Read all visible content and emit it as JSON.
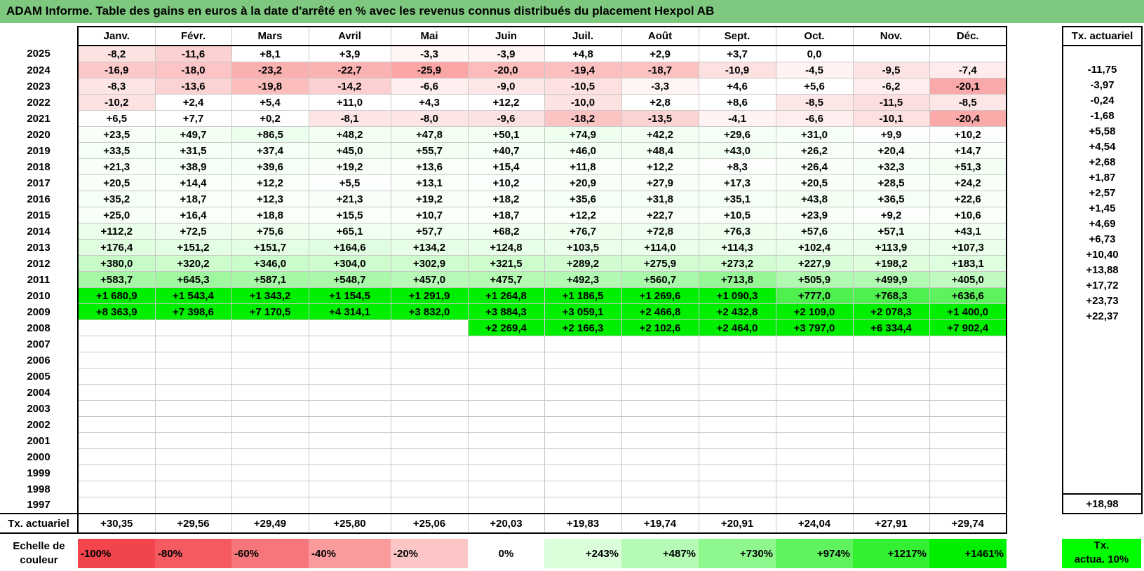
{
  "title": "ADAM Informe. Table des gains en euros à la date d'arrêté en % avec les revenus connus distribués du placement Hexpol AB",
  "months": [
    "Janv.",
    "Févr.",
    "Mars",
    "Avril",
    "Mai",
    "Juin",
    "Juil.",
    "Août",
    "Sept.",
    "Oct.",
    "Nov.",
    "Déc."
  ],
  "side_header": "Tx. actuariel",
  "rows": [
    {
      "year": "2025",
      "tx": "",
      "cells": [
        [
          "-8,2",
          "#fde2e2"
        ],
        [
          "-11,6",
          "#fcd1d1"
        ],
        [
          "+8,1",
          "#ffffff"
        ],
        [
          "+3,9",
          "#ffffff"
        ],
        [
          "-3,3",
          "#fff5f5"
        ],
        [
          "-3,9",
          "#fff3f3"
        ],
        [
          "+4,8",
          "#ffffff"
        ],
        [
          "+2,9",
          "#ffffff"
        ],
        [
          "+3,7",
          "#ffffff"
        ],
        [
          "0,0",
          "#ffffff"
        ],
        [
          "",
          ""
        ],
        [
          "",
          ""
        ]
      ]
    },
    {
      "year": "2024",
      "tx": "-11,75",
      "cells": [
        [
          "-16,9",
          "#fcc9c9"
        ],
        [
          "-18,0",
          "#fcc4c4"
        ],
        [
          "-23,2",
          "#fbb0b0"
        ],
        [
          "-22,7",
          "#fbb2b2"
        ],
        [
          "-25,9",
          "#fba5a5"
        ],
        [
          "-20,0",
          "#fcbcbc"
        ],
        [
          "-19,4",
          "#fcbfbf"
        ],
        [
          "-18,7",
          "#fcc1c1"
        ],
        [
          "-10,9",
          "#fde0e0"
        ],
        [
          "-4,5",
          "#fff2f2"
        ],
        [
          "-9,5",
          "#fde4e4"
        ],
        [
          "-7,4",
          "#feecec"
        ]
      ]
    },
    {
      "year": "2023",
      "tx": "-3,97",
      "cells": [
        [
          "-8,3",
          "#fde5e5"
        ],
        [
          "-13,6",
          "#fcd3d3"
        ],
        [
          "-19,8",
          "#fcbdbd"
        ],
        [
          "-14,2",
          "#fcd0d0"
        ],
        [
          "-6,6",
          "#feeeee"
        ],
        [
          "-9,0",
          "#fde6e6"
        ],
        [
          "-10,5",
          "#fde1e1"
        ],
        [
          "-3,3",
          "#fff5f5"
        ],
        [
          "+4,6",
          "#ffffff"
        ],
        [
          "+5,6",
          "#ffffff"
        ],
        [
          "-6,2",
          "#feeeee"
        ],
        [
          "-20,1",
          "#f9a9a9"
        ]
      ]
    },
    {
      "year": "2022",
      "tx": "-0,24",
      "cells": [
        [
          "-10,2",
          "#fde2e2"
        ],
        [
          "+2,4",
          "#ffffff"
        ],
        [
          "+5,4",
          "#ffffff"
        ],
        [
          "+11,0",
          "#ffffff"
        ],
        [
          "+4,3",
          "#ffffff"
        ],
        [
          "+12,2",
          "#ffffff"
        ],
        [
          "-10,0",
          "#fde2e2"
        ],
        [
          "+2,8",
          "#ffffff"
        ],
        [
          "+8,6",
          "#ffffff"
        ],
        [
          "-8,5",
          "#fde6e6"
        ],
        [
          "-11,5",
          "#fddede"
        ],
        [
          "-8,5",
          "#fde6e6"
        ]
      ]
    },
    {
      "year": "2021",
      "tx": "-1,68",
      "cells": [
        [
          "+6,5",
          "#ffffff"
        ],
        [
          "+7,7",
          "#ffffff"
        ],
        [
          "+0,2",
          "#ffffff"
        ],
        [
          "-8,1",
          "#fde5e5"
        ],
        [
          "-8,0",
          "#fde5e5"
        ],
        [
          "-9,6",
          "#fde2e2"
        ],
        [
          "-18,2",
          "#fcc3c3"
        ],
        [
          "-13,5",
          "#fcd3d3"
        ],
        [
          "-4,1",
          "#fff2f2"
        ],
        [
          "-6,6",
          "#feeeee"
        ],
        [
          "-10,1",
          "#fde1e1"
        ],
        [
          "-20,4",
          "#fba9a9"
        ]
      ]
    },
    {
      "year": "2020",
      "tx": "+5,58",
      "cells": [
        [
          "+23,5",
          "#f8fff8"
        ],
        [
          "+49,7",
          "#f2fff2"
        ],
        [
          "+86,5",
          "#ecffec"
        ],
        [
          "+48,2",
          "#f2fff2"
        ],
        [
          "+47,8",
          "#f2fff2"
        ],
        [
          "+50,1",
          "#f2fff2"
        ],
        [
          "+74,9",
          "#eeffee"
        ],
        [
          "+42,2",
          "#f4fff4"
        ],
        [
          "+29,6",
          "#f6fff6"
        ],
        [
          "+31,0",
          "#f6fff6"
        ],
        [
          "+9,9",
          "#fcfffc"
        ],
        [
          "+10,2",
          "#fcfffc"
        ]
      ]
    },
    {
      "year": "2019",
      "tx": "+4,54",
      "cells": [
        [
          "+33,5",
          "#f6fff6"
        ],
        [
          "+31,5",
          "#f6fff6"
        ],
        [
          "+37,4",
          "#f5fff5"
        ],
        [
          "+45,0",
          "#f4fff4"
        ],
        [
          "+55,7",
          "#f2fff2"
        ],
        [
          "+40,7",
          "#f5fff5"
        ],
        [
          "+46,0",
          "#f4fff4"
        ],
        [
          "+48,4",
          "#f4fff4"
        ],
        [
          "+43,0",
          "#f4fff4"
        ],
        [
          "+26,2",
          "#f7fff7"
        ],
        [
          "+20,4",
          "#f8fff8"
        ],
        [
          "+14,7",
          "#f9fff9"
        ]
      ]
    },
    {
      "year": "2018",
      "tx": "+2,68",
      "cells": [
        [
          "+21,3",
          "#f8fff8"
        ],
        [
          "+38,9",
          "#f5fff5"
        ],
        [
          "+39,6",
          "#f5fff5"
        ],
        [
          "+19,2",
          "#f8fff8"
        ],
        [
          "+13,6",
          "#fafffa"
        ],
        [
          "+15,4",
          "#f9fff9"
        ],
        [
          "+11,8",
          "#fafffa"
        ],
        [
          "+12,2",
          "#fafffa"
        ],
        [
          "+8,3",
          "#fcfffc"
        ],
        [
          "+26,4",
          "#f7fff7"
        ],
        [
          "+32,3",
          "#f6fff6"
        ],
        [
          "+51,3",
          "#f2fff2"
        ]
      ]
    },
    {
      "year": "2017",
      "tx": "+1,87",
      "cells": [
        [
          "+20,5",
          "#f8fff8"
        ],
        [
          "+14,4",
          "#fafffa"
        ],
        [
          "+12,2",
          "#fafffa"
        ],
        [
          "+5,5",
          "#fdfffd"
        ],
        [
          "+13,1",
          "#fafffa"
        ],
        [
          "+10,2",
          "#fbfffb"
        ],
        [
          "+20,9",
          "#f8fff8"
        ],
        [
          "+27,9",
          "#f7fff7"
        ],
        [
          "+17,3",
          "#f9fff9"
        ],
        [
          "+20,5",
          "#f8fff8"
        ],
        [
          "+28,5",
          "#f7fff7"
        ],
        [
          "+24,2",
          "#f8fff8"
        ]
      ]
    },
    {
      "year": "2016",
      "tx": "+2,57",
      "cells": [
        [
          "+35,2",
          "#f6fff6"
        ],
        [
          "+18,7",
          "#f9fff9"
        ],
        [
          "+12,3",
          "#fafffa"
        ],
        [
          "+21,3",
          "#f8fff8"
        ],
        [
          "+19,2",
          "#f8fff8"
        ],
        [
          "+18,2",
          "#f9fff9"
        ],
        [
          "+35,6",
          "#f5fff5"
        ],
        [
          "+31,8",
          "#f6fff6"
        ],
        [
          "+35,1",
          "#f6fff6"
        ],
        [
          "+43,8",
          "#f4fff4"
        ],
        [
          "+36,5",
          "#f5fff5"
        ],
        [
          "+22,6",
          "#f8fff8"
        ]
      ]
    },
    {
      "year": "2015",
      "tx": "+1,45",
      "cells": [
        [
          "+25,0",
          "#f8fff8"
        ],
        [
          "+16,4",
          "#f9fff9"
        ],
        [
          "+18,8",
          "#f9fff9"
        ],
        [
          "+15,5",
          "#f9fff9"
        ],
        [
          "+10,7",
          "#fafffa"
        ],
        [
          "+18,7",
          "#f9fff9"
        ],
        [
          "+12,2",
          "#fafffa"
        ],
        [
          "+22,7",
          "#f8fff8"
        ],
        [
          "+10,5",
          "#fafffa"
        ],
        [
          "+23,9",
          "#f8fff8"
        ],
        [
          "+9,2",
          "#fcfffc"
        ],
        [
          "+10,6",
          "#fafffa"
        ]
      ]
    },
    {
      "year": "2014",
      "tx": "+4,69",
      "cells": [
        [
          "+112,2",
          "#eaffea"
        ],
        [
          "+72,5",
          "#effeef"
        ],
        [
          "+75,6",
          "#eeffee"
        ],
        [
          "+65,1",
          "#f0fff0"
        ],
        [
          "+57,7",
          "#f1fff1"
        ],
        [
          "+68,2",
          "#f0fff0"
        ],
        [
          "+76,7",
          "#eeffee"
        ],
        [
          "+72,8",
          "#efffef"
        ],
        [
          "+76,3",
          "#eeffee"
        ],
        [
          "+57,6",
          "#f1fff1"
        ],
        [
          "+57,1",
          "#f1fff1"
        ],
        [
          "+43,1",
          "#f4fff4"
        ]
      ]
    },
    {
      "year": "2013",
      "tx": "+6,73",
      "cells": [
        [
          "+176,4",
          "#e0fde0"
        ],
        [
          "+151,2",
          "#e3fee3"
        ],
        [
          "+151,7",
          "#e3fee3"
        ],
        [
          "+164,6",
          "#e1fde1"
        ],
        [
          "+134,2",
          "#e6fee6"
        ],
        [
          "+124,8",
          "#e7fee7"
        ],
        [
          "+103,5",
          "#eaffea"
        ],
        [
          "+114,0",
          "#e9ffe9"
        ],
        [
          "+114,3",
          "#e9ffe9"
        ],
        [
          "+102,4",
          "#eaffea"
        ],
        [
          "+113,9",
          "#e9ffe9"
        ],
        [
          "+107,3",
          "#eaffea"
        ]
      ]
    },
    {
      "year": "2012",
      "tx": "+10,40",
      "cells": [
        [
          "+380,0",
          "#c6fbc6"
        ],
        [
          "+320,2",
          "#cdfccd"
        ],
        [
          "+346,0",
          "#cafbca"
        ],
        [
          "+304,0",
          "#cffccf"
        ],
        [
          "+302,9",
          "#cffccf"
        ],
        [
          "+321,5",
          "#cdfccd"
        ],
        [
          "+289,2",
          "#d1fcd1"
        ],
        [
          "+275,9",
          "#d3fcd3"
        ],
        [
          "+273,2",
          "#d3fcd3"
        ],
        [
          "+227,9",
          "#d9fdd9"
        ],
        [
          "+198,2",
          "#ddfddd"
        ],
        [
          "+183,1",
          "#dffddf"
        ]
      ]
    },
    {
      "year": "2011",
      "tx": "+13,88",
      "cells": [
        [
          "+583,7",
          "#a6f7a6"
        ],
        [
          "+645,3",
          "#9ff79f"
        ],
        [
          "+587,1",
          "#a6f7a6"
        ],
        [
          "+548,7",
          "#abf8ab"
        ],
        [
          "+457,0",
          "#b8f9b8"
        ],
        [
          "+475,7",
          "#b5f9b5"
        ],
        [
          "+492,3",
          "#b3f9b3"
        ],
        [
          "+560,7",
          "#aaf8aa"
        ],
        [
          "+713,8",
          "#96f696"
        ],
        [
          "+505,9",
          "#b1f9b1"
        ],
        [
          "+499,9",
          "#b2f9b2"
        ],
        [
          "+405,0",
          "#c1fac1"
        ]
      ]
    },
    {
      "year": "2010",
      "tx": "+17,72",
      "cells": [
        [
          "+1 680,9",
          "#00ee00"
        ],
        [
          "+1 543,4",
          "#00ee00"
        ],
        [
          "+1 343,2",
          "#00ee00"
        ],
        [
          "+1 154,5",
          "#00ee00"
        ],
        [
          "+1 291,9",
          "#00ee00"
        ],
        [
          "+1 264,8",
          "#00ee00"
        ],
        [
          "+1 186,5",
          "#00ee00"
        ],
        [
          "+1 269,6",
          "#00ee00"
        ],
        [
          "+1 090,3",
          "#00ee00"
        ],
        [
          "+777,0",
          "#4df04d"
        ],
        [
          "+768,3",
          "#4ef04e"
        ],
        [
          "+636,6",
          "#5ef25e"
        ]
      ]
    },
    {
      "year": "2009",
      "tx": "+23,73",
      "cells": [
        [
          "+8 363,9",
          "#00ee00"
        ],
        [
          "+7 398,6",
          "#00ee00"
        ],
        [
          "+7 170,5",
          "#00ee00"
        ],
        [
          "+4 314,1",
          "#00ee00"
        ],
        [
          "+3 832,0",
          "#00ee00"
        ],
        [
          "+3 884,3",
          "#00ee00"
        ],
        [
          "+3 059,1",
          "#00ee00"
        ],
        [
          "+2 466,8",
          "#00ee00"
        ],
        [
          "+2 432,8",
          "#00ee00"
        ],
        [
          "+2 109,0",
          "#00ee00"
        ],
        [
          "+2 078,3",
          "#00ee00"
        ],
        [
          "+1 400,0",
          "#00ee00"
        ]
      ]
    },
    {
      "year": "2008",
      "tx": "+22,37",
      "cells": [
        [
          "",
          ""
        ],
        [
          "",
          ""
        ],
        [
          "",
          ""
        ],
        [
          "",
          ""
        ],
        [
          "",
          ""
        ],
        [
          "+2 269,4",
          "#00ee00"
        ],
        [
          "+2 166,3",
          "#00ee00"
        ],
        [
          "+2 102,6",
          "#00ee00"
        ],
        [
          "+2 464,0",
          "#00ee00"
        ],
        [
          "+3 797,0",
          "#00ee00"
        ],
        [
          "+6 334,4",
          "#00ee00"
        ],
        [
          "+7 902,4",
          "#00ee00"
        ]
      ]
    },
    {
      "year": "2007",
      "tx": "",
      "cells": []
    },
    {
      "year": "2006",
      "tx": "",
      "cells": []
    },
    {
      "year": "2005",
      "tx": "",
      "cells": []
    },
    {
      "year": "2004",
      "tx": "",
      "cells": []
    },
    {
      "year": "2003",
      "tx": "",
      "cells": []
    },
    {
      "year": "2002",
      "tx": "",
      "cells": []
    },
    {
      "year": "2001",
      "tx": "",
      "cells": []
    },
    {
      "year": "2000",
      "tx": "",
      "cells": []
    },
    {
      "year": "1999",
      "tx": "",
      "cells": []
    },
    {
      "year": "1998",
      "tx": "",
      "cells": []
    },
    {
      "year": "1997",
      "tx": "",
      "cells": []
    }
  ],
  "tx_row": {
    "label": "Tx. actuariel",
    "values": [
      "+30,35",
      "+29,56",
      "+29,49",
      "+25,80",
      "+25,06",
      "+20,03",
      "+19,83",
      "+19,74",
      "+20,91",
      "+24,04",
      "+27,91",
      "+29,74"
    ],
    "total": "+18,98"
  },
  "scale": {
    "label_line1": "Echelle de",
    "label_line2": "couleur",
    "items": [
      {
        "text": "-100%",
        "color": "#f2444c",
        "kind": "neg"
      },
      {
        "text": "-80%",
        "color": "#f45a60",
        "kind": "neg"
      },
      {
        "text": "-60%",
        "color": "#f6767b",
        "kind": "neg"
      },
      {
        "text": "-40%",
        "color": "#f99a9d",
        "kind": "neg"
      },
      {
        "text": "-20%",
        "color": "#fcc6c7",
        "kind": "neg"
      },
      {
        "text": "0%",
        "color": "#ffffff",
        "kind": "zero"
      },
      {
        "text": "+243%",
        "color": "#dbfedb",
        "kind": "pos"
      },
      {
        "text": "+487%",
        "color": "#b5fbb5",
        "kind": "pos"
      },
      {
        "text": "+730%",
        "color": "#8ef78e",
        "kind": "pos"
      },
      {
        "text": "+974%",
        "color": "#5ff35f",
        "kind": "pos"
      },
      {
        "text": "+1217%",
        "color": "#33f033",
        "kind": "pos"
      },
      {
        "text": "+1461%",
        "color": "#00ee00",
        "kind": "pos"
      }
    ],
    "legend_line1": "Tx.",
    "legend_line2": "actua. 10%"
  }
}
